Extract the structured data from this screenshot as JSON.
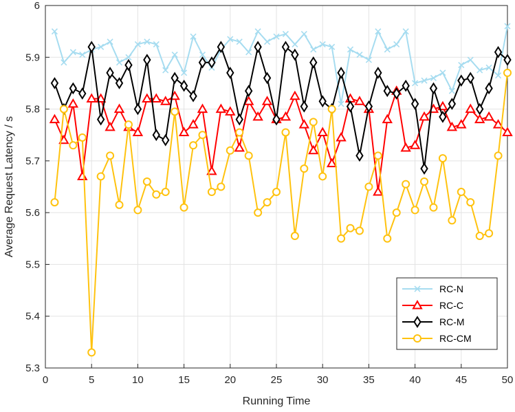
{
  "chart_data": {
    "type": "line",
    "title": "",
    "xlabel": "Running Time",
    "ylabel": "Average Request Latency / s",
    "xlim": [
      0,
      50
    ],
    "ylim": [
      5.3,
      6.0
    ],
    "xticks": [
      0,
      5,
      10,
      15,
      20,
      25,
      30,
      35,
      40,
      45,
      50
    ],
    "yticks": [
      5.3,
      5.4,
      5.5,
      5.6,
      5.7,
      5.8,
      5.9,
      6
    ],
    "xtick_labels": [
      "0",
      "5",
      "10",
      "15",
      "20",
      "25",
      "30",
      "35",
      "40",
      "45",
      "50"
    ],
    "ytick_labels": [
      "5.3",
      "5.4",
      "5.5",
      "5.6",
      "5.7",
      "5.8",
      "5.9",
      "6"
    ],
    "grid": true,
    "legend_position": "bottom-right",
    "x": [
      1,
      2,
      3,
      4,
      5,
      6,
      7,
      8,
      9,
      10,
      11,
      12,
      13,
      14,
      15,
      16,
      17,
      18,
      19,
      20,
      21,
      22,
      23,
      24,
      25,
      26,
      27,
      28,
      29,
      30,
      31,
      32,
      33,
      34,
      35,
      36,
      37,
      38,
      39,
      40,
      41,
      42,
      43,
      44,
      45,
      46,
      47,
      48,
      49,
      50
    ],
    "series": [
      {
        "name": "RC-N",
        "color": "#a6dcf0",
        "marker": "x",
        "values": [
          5.95,
          5.89,
          5.91,
          5.905,
          5.915,
          5.92,
          5.93,
          5.89,
          5.9,
          5.925,
          5.93,
          5.925,
          5.875,
          5.905,
          5.87,
          5.94,
          5.905,
          5.88,
          5.915,
          5.935,
          5.93,
          5.91,
          5.95,
          5.93,
          5.94,
          5.945,
          5.925,
          5.945,
          5.915,
          5.925,
          5.92,
          5.81,
          5.915,
          5.905,
          5.895,
          5.95,
          5.915,
          5.925,
          5.95,
          5.85,
          5.855,
          5.86,
          5.87,
          5.835,
          5.885,
          5.895,
          5.875,
          5.88,
          5.865,
          5.96
        ]
      },
      {
        "name": "RC-C",
        "color": "#ff0000",
        "marker": "triangle",
        "values": [
          5.78,
          5.74,
          5.81,
          5.67,
          5.82,
          5.82,
          5.765,
          5.8,
          5.765,
          5.755,
          5.82,
          5.82,
          5.815,
          5.825,
          5.755,
          5.77,
          5.8,
          5.68,
          5.8,
          5.795,
          5.725,
          5.815,
          5.785,
          5.815,
          5.78,
          5.785,
          5.825,
          5.77,
          5.72,
          5.755,
          5.695,
          5.745,
          5.82,
          5.815,
          5.8,
          5.64,
          5.78,
          5.835,
          5.725,
          5.73,
          5.785,
          5.8,
          5.805,
          5.765,
          5.77,
          5.8,
          5.78,
          5.785,
          5.77,
          5.755
        ]
      },
      {
        "name": "RC-M",
        "color": "#000000",
        "marker": "diamond",
        "values": [
          5.85,
          5.8,
          5.84,
          5.83,
          5.92,
          5.78,
          5.87,
          5.85,
          5.885,
          5.8,
          5.895,
          5.75,
          5.74,
          5.86,
          5.845,
          5.825,
          5.89,
          5.89,
          5.92,
          5.87,
          5.78,
          5.835,
          5.92,
          5.86,
          5.78,
          5.92,
          5.905,
          5.805,
          5.89,
          5.815,
          5.8,
          5.87,
          5.805,
          5.71,
          5.805,
          5.87,
          5.835,
          5.83,
          5.845,
          5.81,
          5.685,
          5.84,
          5.785,
          5.81,
          5.855,
          5.86,
          5.8,
          5.84,
          5.91,
          5.895
        ]
      },
      {
        "name": "RC-CM",
        "color": "#ffc20e",
        "marker": "circle",
        "values": [
          5.62,
          5.8,
          5.73,
          5.745,
          5.33,
          5.67,
          5.71,
          5.615,
          5.77,
          5.605,
          5.66,
          5.635,
          5.64,
          5.795,
          5.61,
          5.73,
          5.75,
          5.64,
          5.65,
          5.72,
          5.755,
          5.71,
          5.6,
          5.62,
          5.64,
          5.755,
          5.555,
          5.685,
          5.775,
          5.67,
          5.8,
          5.55,
          5.57,
          5.565,
          5.65,
          5.71,
          5.55,
          5.6,
          5.655,
          5.605,
          5.66,
          5.61,
          5.705,
          5.585,
          5.64,
          5.62,
          5.555,
          5.56,
          5.71,
          5.87
        ]
      }
    ]
  }
}
